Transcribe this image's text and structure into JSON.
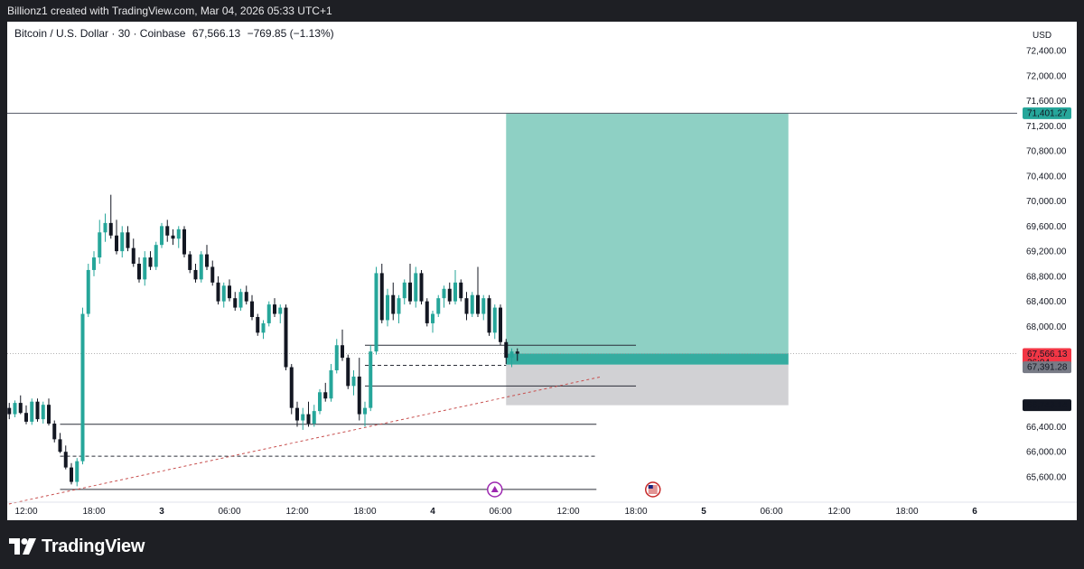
{
  "header": {
    "created_by": "Billionz1 created with TradingView.com, Mar 04, 2026 05:33 UTC+1"
  },
  "symbol": {
    "name": "Bitcoin / U.S. Dollar",
    "interval": "30",
    "exchange": "Coinbase",
    "price": "67,566.13",
    "change": "−769.85",
    "change_pct": "(−1.13%)",
    "currency": "USD"
  },
  "footer": {
    "brand": "TradingView"
  },
  "colors": {
    "up": "#26a69a",
    "down": "#131722",
    "profit_zone": "#8ed0c4",
    "loss_zone": "#d1d1d4",
    "price_badge": "#f23645",
    "current_price_line": "#999999",
    "trendline": "#c8504f"
  },
  "events": [
    {
      "icon": "crypto-event-icon",
      "time": "04 05:00"
    },
    {
      "icon": "us-flag-icon",
      "time": "04 19:00"
    }
  ],
  "chart_data": {
    "type": "candlestick",
    "title": "Bitcoin / U.S. Dollar · 30 · Coinbase",
    "ylabel": "USD",
    "ylim": [
      65250,
      72750
    ],
    "y_ticks": [
      "72,400.00",
      "72,000.00",
      "71,600.00",
      "71,200.00",
      "70,800.00",
      "70,400.00",
      "70,000.00",
      "69,600.00",
      "69,200.00",
      "68,800.00",
      "68,400.00",
      "68,000.00",
      "66,400.00",
      "66,000.00",
      "65,600.00"
    ],
    "x_ticks": [
      "12:00",
      "18:00",
      "3",
      "06:00",
      "12:00",
      "18:00",
      "4",
      "06:00",
      "12:00",
      "18:00",
      "5",
      "06:00",
      "12:00",
      "18:00",
      "6"
    ],
    "x_tick_hours": [
      12,
      18,
      24,
      30,
      36,
      42,
      48,
      54,
      60,
      66,
      72,
      78,
      84,
      90,
      96
    ],
    "bar_interval_minutes": 30,
    "first_bar_hour": 10,
    "candles": [
      [
        66850,
        66920,
        66650,
        66700
      ],
      [
        66700,
        66780,
        66520,
        66600
      ],
      [
        66600,
        66820,
        66550,
        66780
      ],
      [
        66780,
        66900,
        66600,
        66620
      ],
      [
        66620,
        66740,
        66440,
        66480
      ],
      [
        66480,
        66850,
        66430,
        66800
      ],
      [
        66800,
        66850,
        66480,
        66520
      ],
      [
        66520,
        66800,
        66450,
        66750
      ],
      [
        66750,
        66850,
        66420,
        66450
      ],
      [
        66450,
        66500,
        66150,
        66200
      ],
      [
        66200,
        66300,
        65980,
        66000
      ],
      [
        66000,
        66100,
        65720,
        65750
      ],
      [
        65750,
        65820,
        65480,
        65520
      ],
      [
        65520,
        65900,
        65450,
        65850
      ],
      [
        65850,
        68300,
        65800,
        68200
      ],
      [
        68200,
        69000,
        68150,
        68900
      ],
      [
        68900,
        69200,
        68800,
        69100
      ],
      [
        69100,
        69700,
        69000,
        69500
      ],
      [
        69500,
        69800,
        69350,
        69650
      ],
      [
        69650,
        70100,
        69400,
        69450
      ],
      [
        69450,
        69700,
        69150,
        69200
      ],
      [
        69200,
        69600,
        69100,
        69500
      ],
      [
        69500,
        69600,
        69200,
        69250
      ],
      [
        69250,
        69400,
        68950,
        69000
      ],
      [
        69000,
        69100,
        68700,
        68750
      ],
      [
        68750,
        69200,
        68650,
        69100
      ],
      [
        69100,
        69200,
        68900,
        68950
      ],
      [
        68950,
        69350,
        68900,
        69300
      ],
      [
        69300,
        69650,
        69250,
        69600
      ],
      [
        69600,
        69700,
        69350,
        69450
      ],
      [
        69450,
        69550,
        69300,
        69400
      ],
      [
        69400,
        69600,
        69250,
        69550
      ],
      [
        69550,
        69600,
        69100,
        69150
      ],
      [
        69150,
        69200,
        68850,
        68900
      ],
      [
        68900,
        69000,
        68700,
        68750
      ],
      [
        68750,
        69200,
        68700,
        69150
      ],
      [
        69150,
        69300,
        68900,
        68950
      ],
      [
        68950,
        69050,
        68650,
        68700
      ],
      [
        68700,
        68800,
        68350,
        68400
      ],
      [
        68400,
        68700,
        68300,
        68650
      ],
      [
        68650,
        68750,
        68400,
        68450
      ],
      [
        68450,
        68550,
        68250,
        68300
      ],
      [
        68300,
        68600,
        68250,
        68550
      ],
      [
        68550,
        68650,
        68350,
        68400
      ],
      [
        68400,
        68500,
        68100,
        68150
      ],
      [
        68150,
        68200,
        67850,
        67900
      ],
      [
        67900,
        68100,
        67800,
        68050
      ],
      [
        68050,
        68400,
        68000,
        68350
      ],
      [
        68350,
        68450,
        68150,
        68200
      ],
      [
        68200,
        68350,
        68050,
        68300
      ],
      [
        68300,
        68350,
        67300,
        67350
      ],
      [
        67350,
        67400,
        66600,
        66700
      ],
      [
        66700,
        66800,
        66400,
        66500
      ],
      [
        66500,
        66700,
        66350,
        66600
      ],
      [
        66600,
        66800,
        66400,
        66450
      ],
      [
        66450,
        66750,
        66400,
        66650
      ],
      [
        66650,
        67000,
        66600,
        66950
      ],
      [
        66950,
        67100,
        66800,
        66850
      ],
      [
        66850,
        67400,
        66800,
        67300
      ],
      [
        67300,
        67800,
        67250,
        67700
      ],
      [
        67700,
        67950,
        67450,
        67500
      ],
      [
        67500,
        67550,
        67000,
        67050
      ],
      [
        67050,
        67300,
        66900,
        67200
      ],
      [
        67200,
        67500,
        66500,
        66600
      ],
      [
        66600,
        66800,
        66400,
        66700
      ],
      [
        66700,
        67700,
        66650,
        67600
      ],
      [
        67600,
        68950,
        67550,
        68850
      ],
      [
        68850,
        69000,
        68050,
        68100
      ],
      [
        68100,
        68600,
        68000,
        68500
      ],
      [
        68500,
        68700,
        68100,
        68200
      ],
      [
        68200,
        68500,
        68050,
        68450
      ],
      [
        68450,
        68750,
        68350,
        68700
      ],
      [
        68700,
        69000,
        68350,
        68400
      ],
      [
        68400,
        68950,
        68300,
        68850
      ],
      [
        68850,
        68900,
        68350,
        68400
      ],
      [
        68400,
        68450,
        68000,
        68050
      ],
      [
        68050,
        68250,
        67900,
        68200
      ],
      [
        68200,
        68500,
        68150,
        68450
      ],
      [
        68450,
        68650,
        68300,
        68600
      ],
      [
        68600,
        68700,
        68350,
        68400
      ],
      [
        68400,
        68900,
        68350,
        68700
      ],
      [
        68700,
        68750,
        68400,
        68450
      ],
      [
        68450,
        68550,
        68100,
        68200
      ],
      [
        68200,
        68550,
        68150,
        68500
      ],
      [
        68500,
        68950,
        68150,
        68200
      ],
      [
        68200,
        68500,
        68100,
        68450
      ],
      [
        68450,
        68500,
        67850,
        67900
      ],
      [
        67900,
        68350,
        67800,
        68300
      ],
      [
        68300,
        68350,
        67700,
        67750
      ],
      [
        67750,
        67800,
        67400,
        67500
      ],
      [
        67500,
        67650,
        67350,
        67600
      ],
      [
        67600,
        67650,
        67450,
        67566
      ]
    ],
    "position": {
      "type": "long",
      "target": 71401.27,
      "target_label": "71,401.27",
      "entry": 67391.28,
      "entry_label": "67,391.28",
      "stop": 66743.14,
      "stop_label": "66,743.14",
      "start_hour": 54.5,
      "end_hour": 79.5
    },
    "current": {
      "price": 67566.13,
      "label": "67,566.13",
      "countdown": "26:04"
    },
    "levels": [
      {
        "price": 67700,
        "style": "solid",
        "from_hour": 42.0,
        "to_hour": 66.0
      },
      {
        "price": 67380,
        "style": "dashed",
        "from_hour": 42.0,
        "to_hour": 54.5
      },
      {
        "price": 67050,
        "style": "solid",
        "from_hour": 42.0,
        "to_hour": 66.0
      },
      {
        "price": 66440,
        "style": "solid",
        "from_hour": 15.0,
        "to_hour": 62.5
      },
      {
        "price": 65930,
        "style": "dashed",
        "from_hour": 15.0,
        "to_hour": 62.5
      },
      {
        "price": 65400,
        "style": "solid",
        "from_hour": 15.0,
        "to_hour": 62.5
      }
    ],
    "horizontal_line": {
      "price": 71401.27
    },
    "trendline": {
      "from": [
        10.0,
        65150
      ],
      "to": [
        63.0,
        67200
      ]
    }
  }
}
